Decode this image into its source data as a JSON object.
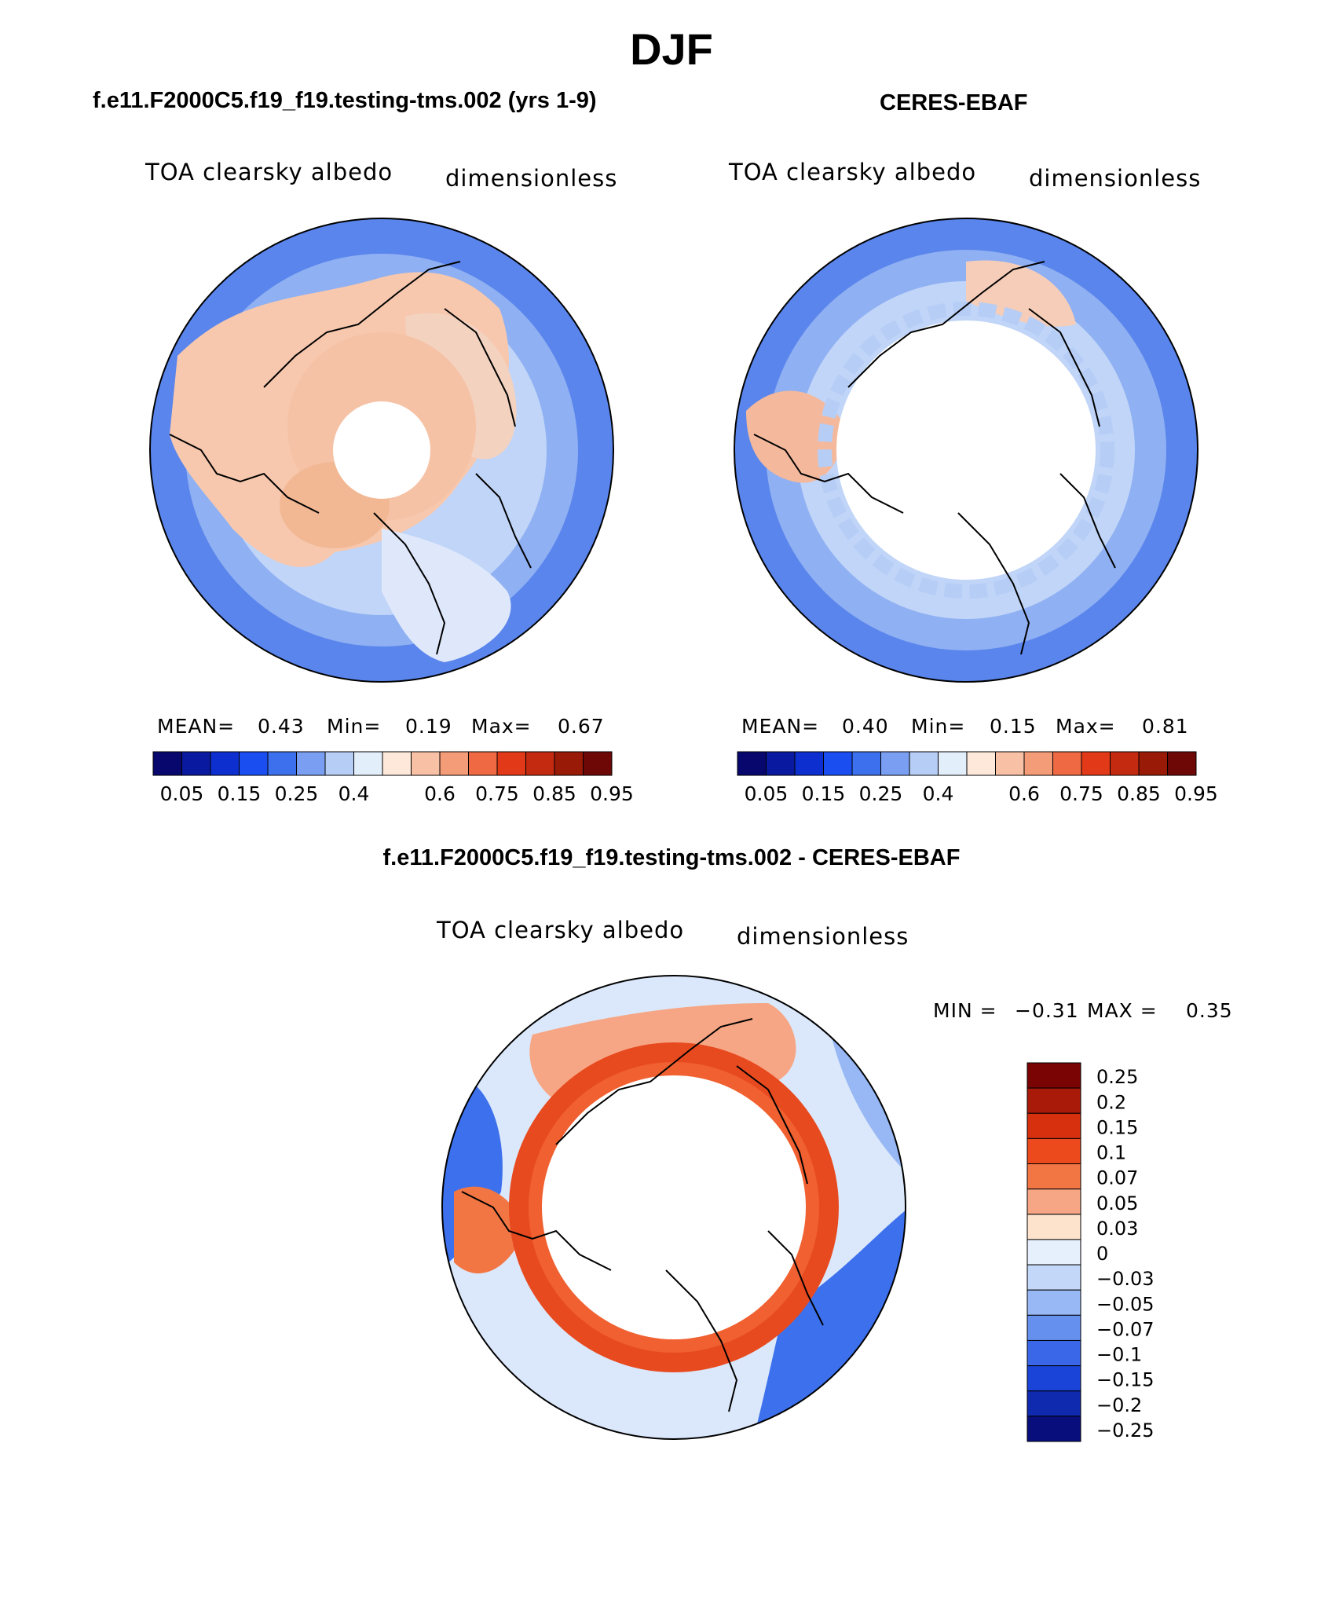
{
  "page": {
    "season_title": "DJF",
    "diff_title": "f.e11.F2000C5.f19_f19.testing-tms.002 - CERES-EBAF"
  },
  "panels": [
    {
      "title": "f.e11.F2000C5.f19_f19.testing-tms.002 (yrs 1-9)",
      "variable": "TOA clearsky albedo",
      "units": "dimensionless",
      "stats": {
        "mean_label": "MEAN=",
        "mean": "0.43",
        "min_label": "Min=",
        "min": "0.19",
        "max_label": "Max=",
        "max": "0.67"
      }
    },
    {
      "title": "CERES-EBAF",
      "variable": "TOA clearsky albedo",
      "units": "dimensionless",
      "stats": {
        "mean_label": "MEAN=",
        "mean": "0.40",
        "min_label": "Min=",
        "min": "0.15",
        "max_label": "Max=",
        "max": "0.81"
      }
    }
  ],
  "abs_colorbar": {
    "colors": [
      "#08076e",
      "#0a1aa0",
      "#0e2fd0",
      "#1a4ef0",
      "#3c70ec",
      "#7a9ff2",
      "#b6cdf6",
      "#e3eefb",
      "#fde8da",
      "#f8c0a4",
      "#f49c78",
      "#ef6a42",
      "#e23a18",
      "#c32a10",
      "#9a1a08",
      "#6e0806"
    ],
    "tick_labels": [
      "0.05",
      "0.15",
      "0.25",
      "0.4",
      "0.6",
      "0.75",
      "0.85",
      "0.95"
    ]
  },
  "diff_panel": {
    "variable": "TOA clearsky albedo",
    "units": "dimensionless",
    "min_label": "MIN =",
    "min": "−0.31",
    "max_label": "MAX =",
    "max": "0.35",
    "colorbar": {
      "colors": [
        "#7a0403",
        "#aa1a08",
        "#d6300e",
        "#ec4a1c",
        "#f27644",
        "#f6a684",
        "#fde3cc",
        "#e6f0fc",
        "#c3d8f8",
        "#97b8f4",
        "#6690ee",
        "#3a66e8",
        "#1a44d8",
        "#0f2aae",
        "#080e7c"
      ],
      "labels": [
        "0.25",
        "0.2",
        "0.15",
        "0.1",
        "0.07",
        "0.05",
        "0.03",
        "0",
        "−0.03",
        "−0.05",
        "−0.07",
        "−0.1",
        "−0.15",
        "−0.2",
        "−0.25"
      ]
    }
  }
}
